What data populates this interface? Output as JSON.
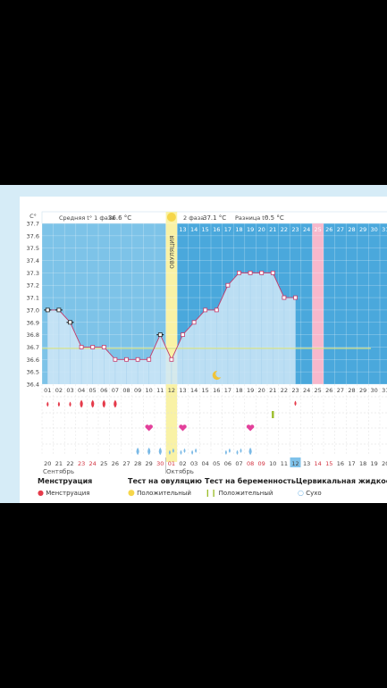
{
  "chart_data": {
    "type": "line",
    "y_unit": "C°",
    "ylim": [
      36.4,
      37.7
    ],
    "yticks": [
      "36.4",
      "36.5",
      "36.6",
      "36.7",
      "36.8",
      "36.9",
      "37.0",
      "37.1",
      "37.2",
      "37.3",
      "37.4",
      "37.5",
      "37.6",
      "37.7"
    ],
    "days_top": [
      "01",
      "02",
      "03",
      "04",
      "05",
      "06",
      "07",
      "08",
      "09",
      "10",
      "11",
      "12",
      "13",
      "14",
      "15",
      "16",
      "17",
      "18",
      "19",
      "20",
      "21",
      "22",
      "23",
      "24",
      "25",
      "26",
      "27",
      "28",
      "29",
      "30",
      "31"
    ],
    "dates_bottom": [
      "20",
      "21",
      "22",
      "23",
      "24",
      "25",
      "26",
      "27",
      "28",
      "29",
      "30",
      "01",
      "02",
      "03",
      "04",
      "05",
      "06",
      "07",
      "08",
      "09",
      "10",
      "11",
      "12",
      "13",
      "14",
      "15",
      "16",
      "17",
      "18",
      "19",
      "20"
    ],
    "dates_red": [
      3,
      4,
      10,
      11,
      18,
      19,
      24,
      25
    ],
    "today_index": 22,
    "phase1_label": "Средняя t° 1 фаза",
    "phase1_value": "36.6 °C",
    "phase2_label": "2 фаза",
    "phase2_value": "37.1 °C",
    "diff_label": "Разница t°",
    "diff_value": "0.5 °C",
    "ovulation_label": "ОВУЛЯЦИЯ",
    "ovulation_index": 11,
    "forecast_index": 24,
    "cover_line": 36.69,
    "series": [
      {
        "values": [
          37.0,
          37.0,
          36.9,
          36.7,
          36.7,
          36.7,
          36.6,
          36.6,
          36.6,
          36.6,
          36.8,
          36.6,
          36.8,
          36.9,
          37.0,
          37.0,
          37.2,
          37.3,
          37.3,
          37.3,
          37.3,
          37.1,
          37.1
        ],
        "dark_markers": [
          0,
          1,
          2,
          10
        ]
      }
    ],
    "menstruation_days": [
      0,
      1,
      2,
      3,
      4,
      5,
      6
    ],
    "menstruation_forecast": [
      22
    ],
    "ovulation_test_days": [
      9,
      12,
      18
    ],
    "pregnancy_test_days": [
      20
    ],
    "cervical_days": [
      {
        "i": 8,
        "t": "drop"
      },
      {
        "i": 9,
        "t": "drop"
      },
      {
        "i": 10,
        "t": "drop"
      },
      {
        "i": 11,
        "t": "drop2"
      },
      {
        "i": 12,
        "t": "drop2"
      },
      {
        "i": 13,
        "t": "drop2"
      },
      {
        "i": 16,
        "t": "drop2"
      },
      {
        "i": 17,
        "t": "drop2"
      },
      {
        "i": 18,
        "t": "drop"
      }
    ],
    "moon_index": 15
  },
  "months": {
    "left": "Сентябрь",
    "right": "Октябрь"
  },
  "legend": {
    "menstruation_title": "Менструация",
    "menstruation_item": "Менструация",
    "ovulation_title": "Тест на овуляцию",
    "ovulation_item": "Положительный",
    "pregnancy_title": "Тест на беременность",
    "pregnancy_item": "Положительный",
    "cervical_title": "Цервикальная жидкость",
    "cervical_item": "Сухо"
  },
  "colors": {
    "follicular_bg": "#7dc3e8",
    "luteal_bg": "#4aa8dc",
    "ovulation_band": "#f9f2a6",
    "forecast_band": "#f7b8cc",
    "line": "#c43a6a",
    "cover": "#d8e38a",
    "fill": "#cfe8f7",
    "heart": "#e3409b",
    "drop_red": "#e53a4a",
    "drop_blue": "#79b9e6"
  }
}
